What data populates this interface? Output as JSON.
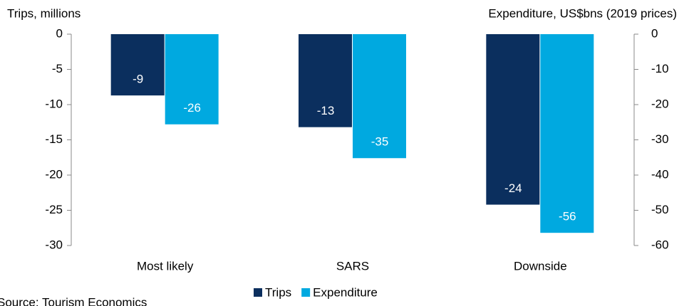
{
  "chart_data": {
    "type": "bar",
    "y_label": "Trips, millions",
    "y2_label": "Expenditure, US$bns (2019 prices)",
    "source": "Source: Tourism Economics",
    "categories": [
      "Most likely",
      "SARS",
      "Downside"
    ],
    "series": [
      {
        "name": "Trips",
        "color": "#0b2f5e",
        "values": [
          -8.7,
          -13.2,
          -24.2
        ],
        "value_labels": [
          "-9",
          "-13",
          "-24"
        ]
      },
      {
        "name": "Expenditure",
        "color": "#00a9e0",
        "axis": "y2",
        "values": [
          -25.6,
          -35.2,
          -56.4
        ],
        "value_labels": [
          "-26",
          "-35",
          "-56"
        ]
      }
    ],
    "ylim": [
      -30,
      0
    ],
    "yticks": [
      0,
      -5,
      -10,
      -15,
      -20,
      -25,
      -30
    ],
    "y2lim": [
      -60,
      0
    ],
    "y2ticks": [
      0,
      -10,
      -20,
      -30,
      -40,
      -50,
      -60
    ],
    "grid": false,
    "legend": "bottom"
  }
}
